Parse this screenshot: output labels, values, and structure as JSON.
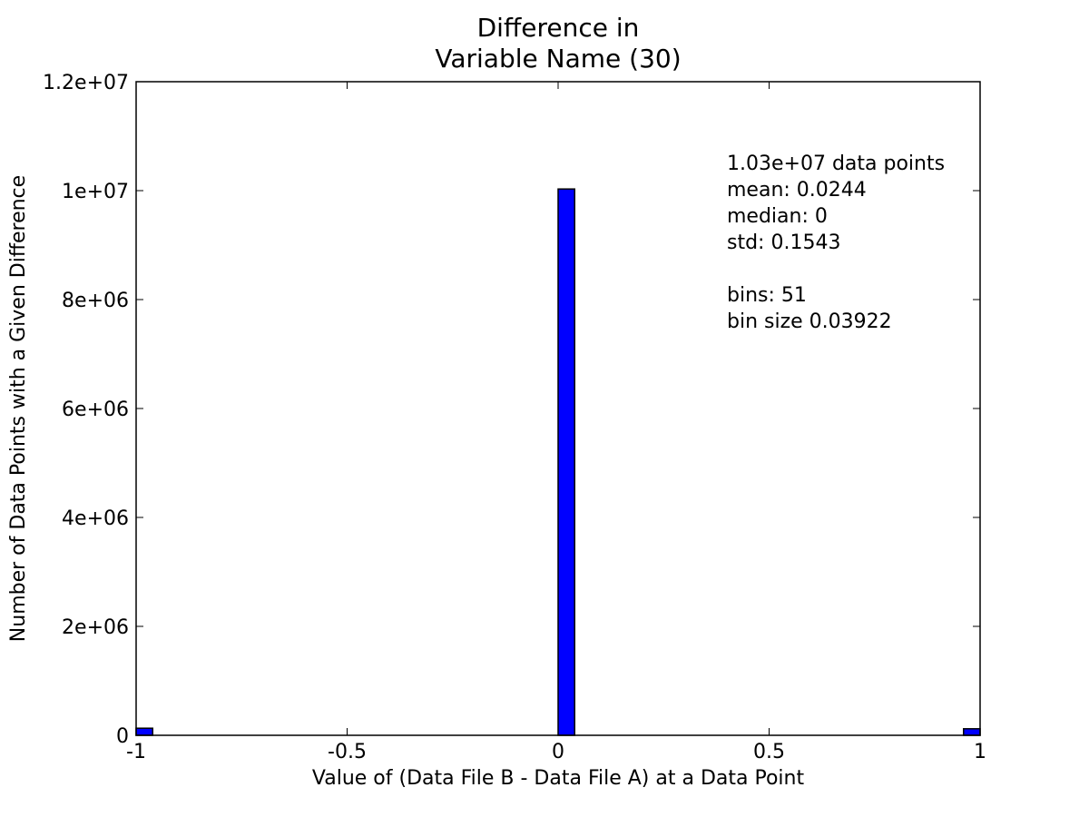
{
  "chart_data": {
    "type": "bar",
    "title": [
      "Difference in",
      "Variable Name (30)"
    ],
    "xlabel": "Value of (Data File B - Data File A) at a Data Point",
    "ylabel": "Number of Data Points with a Given Difference",
    "xlim": [
      -1,
      1
    ],
    "ylim": [
      0,
      12000000
    ],
    "x_ticks": [
      -1,
      -0.5,
      0,
      0.5,
      1
    ],
    "x_tick_labels": [
      "-1",
      "-0.5",
      "0",
      "0.5",
      "1"
    ],
    "y_ticks": [
      0,
      2000000,
      4000000,
      6000000,
      8000000,
      10000000,
      12000000
    ],
    "y_tick_labels": [
      "0",
      "2e+06",
      "4e+06",
      "6e+06",
      "8e+06",
      "1e+07",
      "1.2e+07"
    ],
    "bar_color": "#0000ff",
    "bin_width": 0.03922,
    "bars": [
      {
        "x_start": -1.0,
        "value": 130000
      },
      {
        "x_start": 0.0,
        "value": 10030000
      },
      {
        "x_start": 0.96078,
        "value": 120000
      }
    ],
    "grid": false,
    "annotations": [
      "1.03e+07 data points",
      "mean: 0.0244",
      "median: 0",
      "std: 0.1543",
      "",
      "bins: 51",
      "bin size 0.03922"
    ]
  }
}
